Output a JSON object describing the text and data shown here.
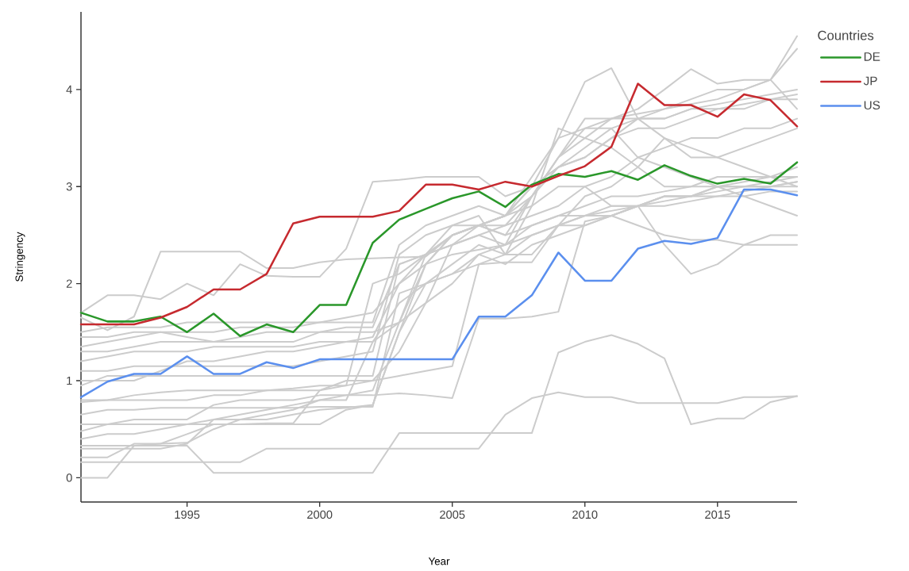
{
  "chart_data": {
    "type": "line",
    "xlabel": "Year",
    "ylabel": "Stringency",
    "legend_title": "Countries",
    "legend": "top right",
    "x": [
      1991,
      1992,
      1993,
      1994,
      1995,
      1996,
      1997,
      1998,
      1999,
      2000,
      2001,
      2002,
      2003,
      2004,
      2005,
      2006,
      2007,
      2008,
      2009,
      2010,
      2011,
      2012,
      2013,
      2014,
      2015,
      2016,
      2017,
      2018
    ],
    "xlim": [
      1991,
      2018
    ],
    "ylim": [
      -0.25,
      4.8
    ],
    "xticks": [
      1995,
      2000,
      2005,
      2010,
      2015
    ],
    "yticks": [
      0,
      1,
      2,
      3,
      4
    ],
    "series": [
      {
        "color": "#cccccc",
        "values": [
          0,
          0,
          0.33,
          0.35,
          0.36,
          0.5,
          0.6,
          0.6,
          0.65,
          0.7,
          0.72,
          0.75,
          1.5,
          2.2,
          2.3,
          2.35,
          2.4,
          2.6,
          2.7,
          2.8,
          2.9,
          2.9,
          2.95,
          3.0,
          3.0,
          3.05,
          3.1,
          3.1
        ]
      },
      {
        "color": "#cccccc",
        "values": [
          0.33,
          0.33,
          0.33,
          0.33,
          0.33,
          0.05,
          0.05,
          0.05,
          0.05,
          0.05,
          0.05,
          0.05,
          0.46,
          0.46,
          0.46,
          0.46,
          0.46,
          0.46,
          1.29,
          1.4,
          1.47,
          1.38,
          1.23,
          0.55,
          0.61,
          0.61,
          0.78,
          0.84
        ]
      },
      {
        "color": "#cccccc",
        "values": [
          0.16,
          0.16,
          0.16,
          0.16,
          0.16,
          0.16,
          0.16,
          0.3,
          0.3,
          0.3,
          0.3,
          0.3,
          0.3,
          0.3,
          0.3,
          0.3,
          0.65,
          0.82,
          0.88,
          0.83,
          0.83,
          0.77,
          0.77,
          0.77,
          0.77,
          0.83,
          0.83,
          0.84
        ]
      },
      {
        "color": "#cccccc",
        "values": [
          0.21,
          0.21,
          0.35,
          0.35,
          0.45,
          0.55,
          0.55,
          0.55,
          0.55,
          0.55,
          0.7,
          0.75,
          1.5,
          2.0,
          2.1,
          2.2,
          2.3,
          2.5,
          2.6,
          2.7,
          2.75,
          2.8,
          2.8,
          2.85,
          2.9,
          2.9,
          2.95,
          2.95
        ]
      },
      {
        "color": "#cccccc",
        "values": [
          0.48,
          0.55,
          0.6,
          0.6,
          0.6,
          0.75,
          0.8,
          0.8,
          0.8,
          0.85,
          0.85,
          0.85,
          0.87,
          0.85,
          0.82,
          1.64,
          1.64,
          1.66,
          1.71,
          2.64,
          2.7,
          2.8,
          2.85,
          2.9,
          2.95,
          3.0,
          3.0,
          3.05
        ]
      },
      {
        "color": "#cccccc",
        "values": [
          0.55,
          0.55,
          0.55,
          0.55,
          0.55,
          0.55,
          0.55,
          0.56,
          0.56,
          0.9,
          0.95,
          1.0,
          1.05,
          1.1,
          1.15,
          2.2,
          2.22,
          2.22,
          2.6,
          2.7,
          2.8,
          2.8,
          2.9,
          2.9,
          2.9,
          2.95,
          3.0,
          3.0
        ]
      },
      {
        "color": "#cccccc",
        "values": [
          0.65,
          0.7,
          0.7,
          0.72,
          0.72,
          0.72,
          0.72,
          0.72,
          0.72,
          0.73,
          0.73,
          0.73,
          1.9,
          2.0,
          2.1,
          2.3,
          2.4,
          2.5,
          2.6,
          2.6,
          2.7,
          2.8,
          2.9,
          2.9,
          3.0,
          3.0,
          3.05,
          3.1
        ]
      },
      {
        "color": "#cccccc",
        "values": [
          0.78,
          0.8,
          0.85,
          0.88,
          0.9,
          0.9,
          0.9,
          0.9,
          0.92,
          0.95,
          0.95,
          2.0,
          2.1,
          2.3,
          2.6,
          2.7,
          2.3,
          2.8,
          3.6,
          3.5,
          3.4,
          3.2,
          3.0,
          3.0,
          3.1,
          3.1,
          3.1,
          3.2
        ]
      },
      {
        "color": "#cccccc",
        "values": [
          0.95,
          1.05,
          1.05,
          1.05,
          1.05,
          1.05,
          1.05,
          1.05,
          1.05,
          1.05,
          1.05,
          1.05,
          2.2,
          2.3,
          2.4,
          2.5,
          2.6,
          2.7,
          2.8,
          3.0,
          3.1,
          3.3,
          3.4,
          3.5,
          3.5,
          3.6,
          3.6,
          3.7
        ]
      },
      {
        "color": "#cccccc",
        "values": [
          1.1,
          1.1,
          1.15,
          1.15,
          1.15,
          1.15,
          1.15,
          1.15,
          1.15,
          1.2,
          1.25,
          1.3,
          2.3,
          2.5,
          2.6,
          2.6,
          2.7,
          3.0,
          3.2,
          3.4,
          3.6,
          3.7,
          3.7,
          3.8,
          3.85,
          3.9,
          3.95,
          4.0
        ]
      },
      {
        "color": "#cccccc",
        "values": [
          1.2,
          1.25,
          1.3,
          1.3,
          1.3,
          1.35,
          1.35,
          1.35,
          1.35,
          1.4,
          1.4,
          1.45,
          2.0,
          2.2,
          2.5,
          2.6,
          2.7,
          2.9,
          3.3,
          3.6,
          3.6,
          3.3,
          3.2,
          3.1,
          3.0,
          2.9,
          2.8,
          2.7
        ]
      },
      {
        "color": "#cccccc",
        "values": [
          1.3,
          1.3,
          1.35,
          1.4,
          1.4,
          1.4,
          1.4,
          1.4,
          1.4,
          1.5,
          1.5,
          1.5,
          1.6,
          2.2,
          2.5,
          2.6,
          2.7,
          2.8,
          3.0,
          3.0,
          2.8,
          2.8,
          2.9,
          2.9,
          3.0,
          3.0,
          3.0,
          3.05
        ]
      },
      {
        "color": "#cccccc",
        "values": [
          1.35,
          1.4,
          1.45,
          1.5,
          1.45,
          1.4,
          1.45,
          1.5,
          1.5,
          1.5,
          1.55,
          1.55,
          2.2,
          2.3,
          2.4,
          2.5,
          2.4,
          2.9,
          3.3,
          3.7,
          3.7,
          3.75,
          3.8,
          3.85,
          3.9,
          4.0,
          4.1,
          4.42
        ]
      },
      {
        "color": "#cccccc",
        "values": [
          1.45,
          1.45,
          1.5,
          1.5,
          1.5,
          1.5,
          1.55,
          1.55,
          1.55,
          1.6,
          1.6,
          1.6,
          2.4,
          2.6,
          2.7,
          2.8,
          2.7,
          3.0,
          3.2,
          3.3,
          3.5,
          3.6,
          3.6,
          3.7,
          3.8,
          3.8,
          3.9,
          3.9
        ]
      },
      {
        "color": "#cccccc",
        "values": [
          1.5,
          1.55,
          1.55,
          1.55,
          1.6,
          1.6,
          1.6,
          1.6,
          1.6,
          1.6,
          1.65,
          1.7,
          2.0,
          2.3,
          2.5,
          2.6,
          2.5,
          2.6,
          2.7,
          2.7,
          2.7,
          2.6,
          2.5,
          2.45,
          2.45,
          2.4,
          2.4,
          2.4
        ]
      },
      {
        "color": "#cccccc",
        "values": [
          1.65,
          1.52,
          1.66,
          2.33,
          2.33,
          2.33,
          2.33,
          2.16,
          2.16,
          2.22,
          2.25,
          2.26,
          2.27,
          2.28,
          2.5,
          2.6,
          2.5,
          2.9,
          3.2,
          3.3,
          3.5,
          3.7,
          3.8,
          3.9,
          4.0,
          4.0,
          4.1,
          4.55
        ]
      },
      {
        "color": "#cccccc",
        "values": [
          1.7,
          1.88,
          1.88,
          1.84,
          2.0,
          1.88,
          2.2,
          2.08,
          2.07,
          2.07,
          2.36,
          3.05,
          3.07,
          3.1,
          3.1,
          3.1,
          2.9,
          3.0,
          3.5,
          3.6,
          3.7,
          3.7,
          3.7,
          3.8,
          3.8,
          3.85,
          3.9,
          3.95
        ]
      },
      {
        "color": "#cccccc",
        "values": [
          1.0,
          1.0,
          1.0,
          1.1,
          1.2,
          1.2,
          1.25,
          1.3,
          1.3,
          1.35,
          1.4,
          1.4,
          1.6,
          2.3,
          2.5,
          2.6,
          2.7,
          3.1,
          3.5,
          4.08,
          4.22,
          3.7,
          3.5,
          3.4,
          3.3,
          3.2,
          3.1,
          3.0
        ]
      },
      {
        "color": "#cccccc",
        "values": [
          0.8,
          0.8,
          0.8,
          0.8,
          0.8,
          0.85,
          0.85,
          0.9,
          0.9,
          0.9,
          1.0,
          1.0,
          1.3,
          1.8,
          2.4,
          2.6,
          2.6,
          2.9,
          3.3,
          3.5,
          3.7,
          3.8,
          4.0,
          4.21,
          4.06,
          4.1,
          4.1,
          3.8
        ]
      },
      {
        "color": "#cccccc",
        "values": [
          0.4,
          0.45,
          0.45,
          0.5,
          0.55,
          0.6,
          0.6,
          0.65,
          0.7,
          0.8,
          0.85,
          0.9,
          1.6,
          1.8,
          2.0,
          2.3,
          2.2,
          2.4,
          2.5,
          2.6,
          2.7,
          2.8,
          2.4,
          2.1,
          2.2,
          2.4,
          2.5,
          2.5
        ]
      },
      {
        "color": "#cccccc",
        "values": [
          0.3,
          0.3,
          0.3,
          0.3,
          0.35,
          0.6,
          0.65,
          0.7,
          0.75,
          0.8,
          0.8,
          1.4,
          1.8,
          2.0,
          2.2,
          2.4,
          2.3,
          2.3,
          2.6,
          2.9,
          3.0,
          3.2,
          3.5,
          3.3,
          3.3,
          3.4,
          3.5,
          3.6
        ]
      },
      {
        "name": "DE",
        "color": "#2a972a",
        "values": [
          1.7,
          1.61,
          1.61,
          1.66,
          1.5,
          1.69,
          1.46,
          1.58,
          1.5,
          1.78,
          1.78,
          2.42,
          2.66,
          2.77,
          2.88,
          2.95,
          2.79,
          3.02,
          3.13,
          3.1,
          3.16,
          3.07,
          3.22,
          3.11,
          3.03,
          3.08,
          3.03,
          3.25
        ]
      },
      {
        "name": "JP",
        "color": "#c62a2f",
        "values": [
          1.58,
          1.58,
          1.58,
          1.65,
          1.76,
          1.94,
          1.94,
          2.1,
          2.62,
          2.69,
          2.69,
          2.69,
          2.75,
          3.02,
          3.02,
          2.97,
          3.05,
          3.0,
          3.11,
          3.21,
          3.41,
          4.06,
          3.84,
          3.84,
          3.72,
          3.95,
          3.89,
          3.62
        ]
      },
      {
        "name": "US",
        "color": "#5b8fee",
        "values": [
          0.83,
          0.99,
          1.07,
          1.07,
          1.25,
          1.07,
          1.07,
          1.19,
          1.13,
          1.22,
          1.22,
          1.22,
          1.22,
          1.22,
          1.22,
          1.66,
          1.66,
          1.88,
          2.32,
          2.03,
          2.03,
          2.36,
          2.44,
          2.41,
          2.47,
          2.97,
          2.97,
          2.91
        ]
      }
    ]
  }
}
